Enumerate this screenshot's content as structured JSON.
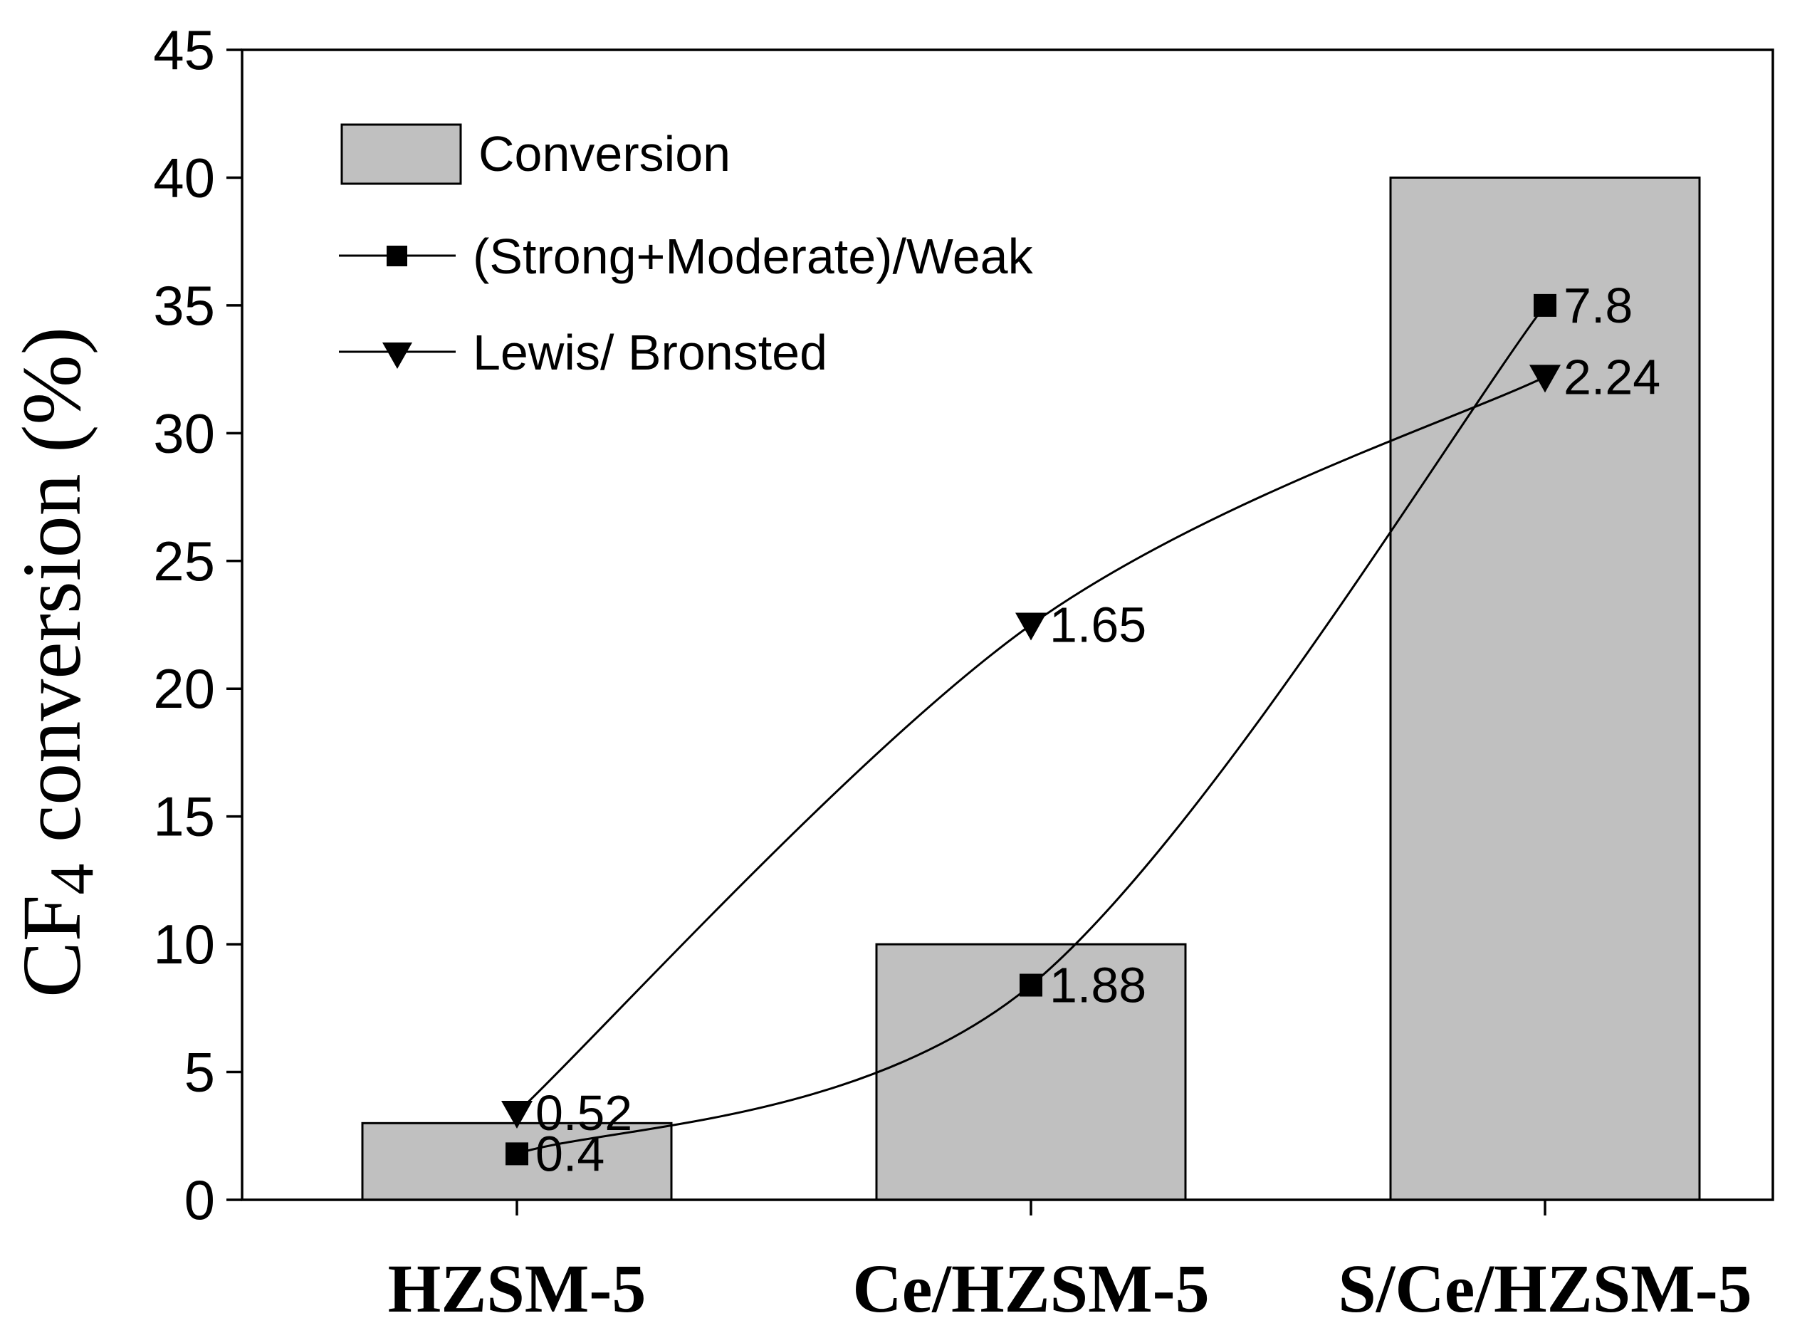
{
  "chart_data": {
    "type": "bar",
    "categories": [
      "HZSM-5",
      "Ce/HZSM-5",
      "S/Ce/HZSM-5"
    ],
    "ylabel_main": "CF",
    "ylabel_sub": "4",
    "ylabel_rest": " conversion (%)",
    "ylim": [
      0,
      45
    ],
    "yticks": [
      0,
      5,
      10,
      15,
      20,
      25,
      30,
      35,
      40,
      45
    ],
    "grid": false,
    "legend_position": "top-left",
    "colors": {
      "bar": "#c0c0c0",
      "line": "#000000"
    },
    "bars": {
      "name": "Conversion",
      "values": [
        3,
        10,
        40
      ]
    },
    "series": [
      {
        "name": "(Strong+Moderate)/Weak",
        "marker": "square",
        "plot_y": [
          1.8,
          8.4,
          35
        ],
        "labels": [
          "0.4",
          "1.88",
          "7.8"
        ]
      },
      {
        "name": "Lewis/ Bronsted",
        "marker": "triangle-down",
        "plot_y": [
          3.4,
          22.5,
          32.2
        ],
        "labels": [
          "0.52",
          "1.65",
          "2.24"
        ]
      }
    ]
  }
}
